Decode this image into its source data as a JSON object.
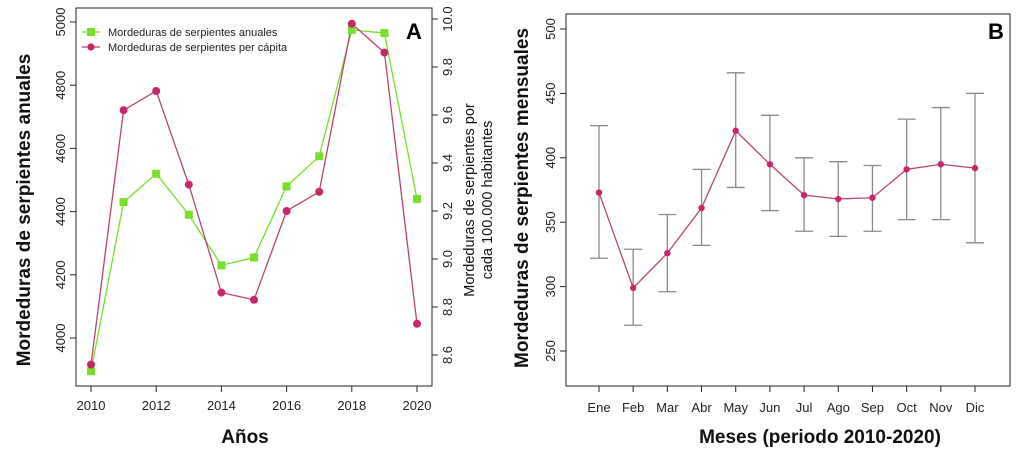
{
  "chart_data": [
    {
      "type": "line",
      "panel_label": "A",
      "x": [
        2010,
        2011,
        2012,
        2013,
        2014,
        2015,
        2016,
        2017,
        2018,
        2019,
        2020
      ],
      "xlabel": "Años",
      "ylabel": "Mordeduras de serpientes anuales",
      "ylabel_right": [
        "Mordeduras de serpientes por",
        "cada 100.000 habitantes"
      ],
      "xlim": [
        2010,
        2020
      ],
      "ylim": [
        3900,
        5000
      ],
      "ylim_right": [
        8.55,
        10.0
      ],
      "x_ticks": [
        "2010",
        "2012",
        "2014",
        "2016",
        "2018",
        "2020"
      ],
      "y_ticks": [
        "4000",
        "4200",
        "4400",
        "4600",
        "4800",
        "5000"
      ],
      "y_ticks_right": [
        "8.6",
        "8.8",
        "9.0",
        "9.2",
        "9.4",
        "9.6",
        "9.8",
        "10.0"
      ],
      "legend_position": "top-left",
      "grid": false,
      "series": [
        {
          "name": "Mordeduras de serpientes anuales",
          "axis": "left",
          "marker": "square",
          "color": "#77e02b",
          "values": [
            3895,
            4430,
            4520,
            4390,
            4230,
            4255,
            4480,
            4575,
            4975,
            4965,
            4440
          ]
        },
        {
          "name": "Mordeduras de serpientes per cápita",
          "axis": "right",
          "marker": "circle",
          "color": "#c8266a",
          "line_color": "#b8446f",
          "values": [
            8.56,
            9.62,
            9.7,
            9.31,
            8.86,
            8.83,
            9.2,
            9.28,
            9.98,
            9.86,
            8.73
          ]
        }
      ]
    },
    {
      "type": "line",
      "panel_label": "B",
      "categories": [
        "Ene",
        "Feb",
        "Mar",
        "Abr",
        "May",
        "Jun",
        "Jul",
        "Ago",
        "Sep",
        "Oct",
        "Nov",
        "Dic"
      ],
      "xlabel": "Meses (periodo 2010-2020)",
      "ylabel": "Mordeduras de serpientes mensuales",
      "ylim": [
        230,
        500
      ],
      "y_ticks": [
        "250",
        "300",
        "350",
        "400",
        "450",
        "500"
      ],
      "grid": false,
      "series": [
        {
          "marker": "circle",
          "color": "#c8266a",
          "line_color": "#b8446f",
          "values": [
            373,
            299,
            326,
            361,
            421,
            395,
            371,
            368,
            369,
            391,
            395,
            392
          ],
          "error_low": [
            322,
            270,
            296,
            332,
            377,
            359,
            343,
            339,
            343,
            352,
            352,
            334
          ],
          "error_high": [
            425,
            329,
            356,
            391,
            466,
            433,
            400,
            397,
            394,
            430,
            439,
            450
          ]
        }
      ]
    }
  ]
}
